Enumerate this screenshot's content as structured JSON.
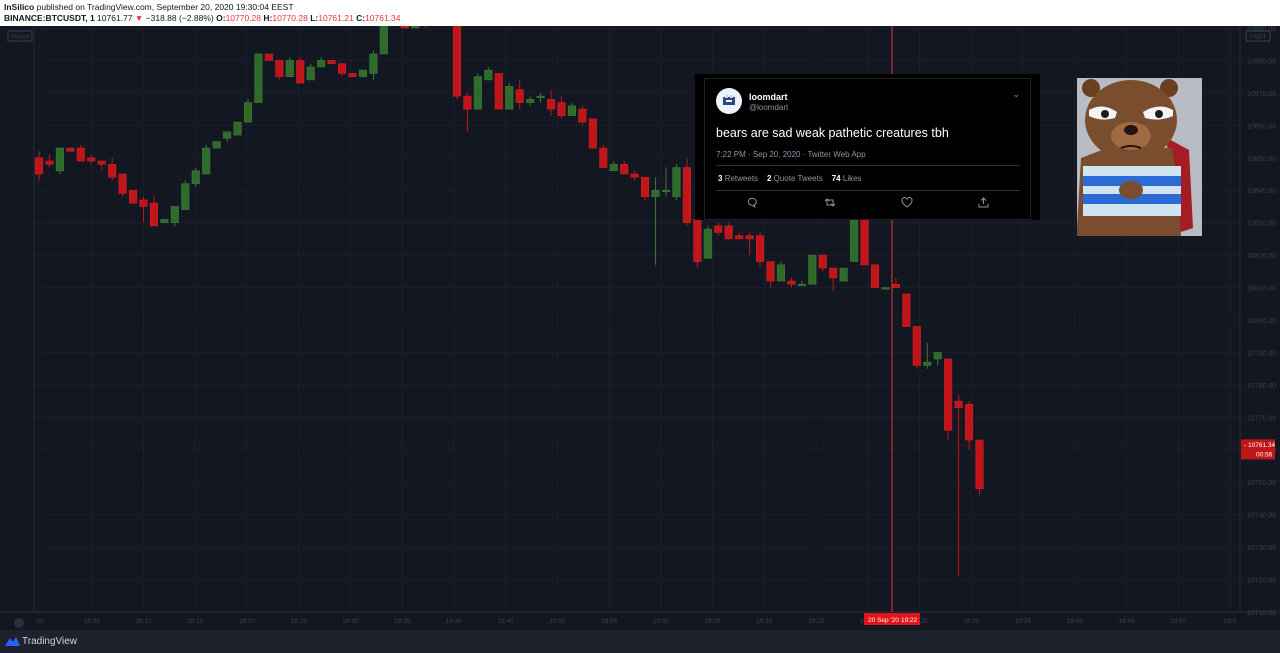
{
  "header": {
    "author": "InSilico",
    "published": "published on TradingView.com, September 20, 2020 19:30:04 EEST",
    "symbol": "BINANCE:BTCUSDT, 1",
    "last": "10761.77",
    "change": "−318.88 (−2.88%)",
    "o_label": "O:",
    "o_value": "10770.28",
    "h_label": "H:",
    "h_value": "10770.28",
    "l_label": "L:",
    "l_value": "10761.21",
    "c_label": "C:",
    "c_value": "10761.34"
  },
  "colors": {
    "up": "#2f6b2a",
    "down": "#c0161a",
    "background": "#131722",
    "grid": "#1b1f2a",
    "crosshair": "#e0393e"
  },
  "chart_data": {
    "type": "candlestick",
    "symbol": "BTCUSDT",
    "interval_minutes": 1,
    "unit_label": "USDT",
    "y_right_range": [
      10710,
      10890
    ],
    "y_right_ticks": [
      10890,
      10880,
      10870,
      10860,
      10850,
      10840,
      10830,
      10820,
      10810,
      10800,
      10790,
      10780,
      10770,
      10760,
      10750,
      10740,
      10730,
      10720,
      10710
    ],
    "x_ticks": [
      "00",
      "18:05",
      "18:10",
      "18:15",
      "18:20",
      "18:25",
      "18:30",
      "18:35",
      "18:40",
      "18:45",
      "18:50",
      "18:55",
      "19:00",
      "19:05",
      "19:10",
      "19:15",
      "19:20",
      "19:25",
      "19:30",
      "19:35",
      "19:40",
      "19:45",
      "19:50",
      "19:5"
    ],
    "last_price": "10761.34",
    "countdown": "00:56",
    "crosshair_date": "20 Sep '20",
    "crosshair_time": "19:22",
    "left_scale_tag": "Moved",
    "candles": [
      {
        "o": 10850,
        "h": 10852,
        "l": 10843,
        "c": 10845
      },
      {
        "o": 10849,
        "h": 10851,
        "l": 10847,
        "c": 10848
      },
      {
        "o": 10846,
        "h": 10853,
        "l": 10845,
        "c": 10853
      },
      {
        "o": 10853,
        "h": 10853,
        "l": 10852,
        "c": 10852
      },
      {
        "o": 10853,
        "h": 10854,
        "l": 10850,
        "c": 10849
      },
      {
        "o": 10850,
        "h": 10851,
        "l": 10848,
        "c": 10849
      },
      {
        "o": 10849,
        "h": 10849,
        "l": 10846,
        "c": 10848
      },
      {
        "o": 10848,
        "h": 10850,
        "l": 10843,
        "c": 10844
      },
      {
        "o": 10845,
        "h": 10845,
        "l": 10838,
        "c": 10839
      },
      {
        "o": 10840,
        "h": 10840,
        "l": 10836,
        "c": 10836
      },
      {
        "o": 10837,
        "h": 10838,
        "l": 10830,
        "c": 10835
      },
      {
        "o": 10836,
        "h": 10838,
        "l": 10829,
        "c": 10829
      },
      {
        "o": 10830,
        "h": 10831,
        "l": 10830,
        "c": 10831
      },
      {
        "o": 10830,
        "h": 10835,
        "l": 10829,
        "c": 10835
      },
      {
        "o": 10834,
        "h": 10843,
        "l": 10834,
        "c": 10842
      },
      {
        "o": 10842,
        "h": 10847,
        "l": 10841,
        "c": 10846
      },
      {
        "o": 10845,
        "h": 10854,
        "l": 10845,
        "c": 10853
      },
      {
        "o": 10853,
        "h": 10855,
        "l": 10853,
        "c": 10855
      },
      {
        "o": 10856,
        "h": 10858,
        "l": 10855,
        "c": 10858
      },
      {
        "o": 10857,
        "h": 10861,
        "l": 10857,
        "c": 10861
      },
      {
        "o": 10861,
        "h": 10868,
        "l": 10861,
        "c": 10867
      },
      {
        "o": 10867,
        "h": 10882,
        "l": 10867,
        "c": 10882
      },
      {
        "o": 10882,
        "h": 10882,
        "l": 10880,
        "c": 10880
      },
      {
        "o": 10880,
        "h": 10880,
        "l": 10874,
        "c": 10875
      },
      {
        "o": 10875,
        "h": 10881,
        "l": 10875,
        "c": 10880
      },
      {
        "o": 10880,
        "h": 10881,
        "l": 10873,
        "c": 10873
      },
      {
        "o": 10874,
        "h": 10879,
        "l": 10874,
        "c": 10878
      },
      {
        "o": 10878,
        "h": 10881,
        "l": 10878,
        "c": 10880
      },
      {
        "o": 10880,
        "h": 10880,
        "l": 10879,
        "c": 10879
      },
      {
        "o": 10879,
        "h": 10879,
        "l": 10875,
        "c": 10876
      },
      {
        "o": 10876,
        "h": 10876,
        "l": 10875,
        "c": 10875
      },
      {
        "o": 10875,
        "h": 10877,
        "l": 10875,
        "c": 10877
      },
      {
        "o": 10876,
        "h": 10883,
        "l": 10874,
        "c": 10882
      },
      {
        "o": 10882,
        "h": 10891,
        "l": 10882,
        "c": 10891
      },
      {
        "o": 10893,
        "h": 10895,
        "l": 10893,
        "c": 10894
      },
      {
        "o": 10894,
        "h": 10894,
        "l": 10890,
        "c": 10890
      },
      {
        "o": 10890,
        "h": 10895,
        "l": 10890,
        "c": 10894
      },
      {
        "o": 10892,
        "h": 10893,
        "l": 10890,
        "c": 10891
      },
      {
        "o": 10891,
        "h": 10894,
        "l": 10891,
        "c": 10893
      },
      {
        "o": 10893,
        "h": 10894,
        "l": 10892,
        "c": 10893
      },
      {
        "o": 10895,
        "h": 10896,
        "l": 10868,
        "c": 10869
      },
      {
        "o": 10869,
        "h": 10870,
        "l": 10858,
        "c": 10865
      },
      {
        "o": 10865,
        "h": 10876,
        "l": 10865,
        "c": 10875
      },
      {
        "o": 10874,
        "h": 10878,
        "l": 10874,
        "c": 10877
      },
      {
        "o": 10876,
        "h": 10876,
        "l": 10865,
        "c": 10865
      },
      {
        "o": 10865,
        "h": 10873,
        "l": 10865,
        "c": 10872
      },
      {
        "o": 10871,
        "h": 10874,
        "l": 10865,
        "c": 10867
      },
      {
        "o": 10867,
        "h": 10869,
        "l": 10866,
        "c": 10868
      },
      {
        "o": 10869,
        "h": 10870,
        "l": 10867,
        "c": 10869
      },
      {
        "o": 10868,
        "h": 10871,
        "l": 10863,
        "c": 10865
      },
      {
        "o": 10867,
        "h": 10869,
        "l": 10862,
        "c": 10863
      },
      {
        "o": 10863,
        "h": 10867,
        "l": 10863,
        "c": 10866
      },
      {
        "o": 10865,
        "h": 10866,
        "l": 10860,
        "c": 10861
      },
      {
        "o": 10862,
        "h": 10862,
        "l": 10853,
        "c": 10853
      },
      {
        "o": 10853,
        "h": 10854,
        "l": 10847,
        "c": 10847
      },
      {
        "o": 10846,
        "h": 10849,
        "l": 10846,
        "c": 10848
      },
      {
        "o": 10848,
        "h": 10849,
        "l": 10845,
        "c": 10845
      },
      {
        "o": 10845,
        "h": 10846,
        "l": 10843,
        "c": 10844
      },
      {
        "o": 10844,
        "h": 10844,
        "l": 10837,
        "c": 10838
      },
      {
        "o": 10838,
        "h": 10844,
        "l": 10817,
        "c": 10840
      },
      {
        "o": 10840,
        "h": 10847,
        "l": 10838,
        "c": 10840
      },
      {
        "o": 10838,
        "h": 10848,
        "l": 10837,
        "c": 10847
      },
      {
        "o": 10847,
        "h": 10850,
        "l": 10829,
        "c": 10830
      },
      {
        "o": 10831,
        "h": 10831,
        "l": 10816,
        "c": 10818
      },
      {
        "o": 10819,
        "h": 10829,
        "l": 10819,
        "c": 10828
      },
      {
        "o": 10829,
        "h": 10830,
        "l": 10826,
        "c": 10827
      },
      {
        "o": 10829,
        "h": 10830,
        "l": 10826,
        "c": 10825
      },
      {
        "o": 10826,
        "h": 10827,
        "l": 10825,
        "c": 10825
      },
      {
        "o": 10826,
        "h": 10827,
        "l": 10820,
        "c": 10825
      },
      {
        "o": 10826,
        "h": 10827,
        "l": 10816,
        "c": 10818
      },
      {
        "o": 10818,
        "h": 10818,
        "l": 10810,
        "c": 10812
      },
      {
        "o": 10812,
        "h": 10818,
        "l": 10812,
        "c": 10817
      },
      {
        "o": 10812,
        "h": 10813,
        "l": 10810,
        "c": 10811
      },
      {
        "o": 10811,
        "h": 10812,
        "l": 10811,
        "c": 10811
      },
      {
        "o": 10811,
        "h": 10820,
        "l": 10811,
        "c": 10820
      },
      {
        "o": 10820,
        "h": 10820,
        "l": 10815,
        "c": 10816
      },
      {
        "o": 10816,
        "h": 10816,
        "l": 10809,
        "c": 10813
      },
      {
        "o": 10812,
        "h": 10816,
        "l": 10812,
        "c": 10816
      },
      {
        "o": 10818,
        "h": 10832,
        "l": 10818,
        "c": 10831
      },
      {
        "o": 10831,
        "h": 10831,
        "l": 10817,
        "c": 10817
      },
      {
        "o": 10817,
        "h": 10817,
        "l": 10810,
        "c": 10810
      },
      {
        "o": 10810,
        "h": 10810,
        "l": 10810,
        "c": 10810
      },
      {
        "o": 10811,
        "h": 10813,
        "l": 10810,
        "c": 10810
      },
      {
        "o": 10808,
        "h": 10808,
        "l": 10798,
        "c": 10798
      },
      {
        "o": 10798,
        "h": 10798,
        "l": 10785,
        "c": 10786
      },
      {
        "o": 10786,
        "h": 10793,
        "l": 10785,
        "c": 10787
      },
      {
        "o": 10788,
        "h": 10790,
        "l": 10786,
        "c": 10790
      },
      {
        "o": 10788,
        "h": 10788,
        "l": 10763,
        "c": 10766
      },
      {
        "o": 10775,
        "h": 10777,
        "l": 10721,
        "c": 10773
      },
      {
        "o": 10774,
        "h": 10775,
        "l": 10760,
        "c": 10763
      },
      {
        "o": 10763,
        "h": 10763,
        "l": 10746,
        "c": 10748
      }
    ]
  },
  "tweet": {
    "name": "loomdart",
    "handle": "@loomdart",
    "text": "bears are sad weak pathetic creatures tbh",
    "meta": "7:22 PM · Sep 20, 2020 · Twitter Web App",
    "retweets": "3",
    "retweets_label": "Retweets",
    "quote_tweets": "2",
    "quote_tweets_label": "Quote Tweets",
    "likes": "74",
    "likes_label": "Likes",
    "menu_icon": "chevron-down-icon",
    "action_icons": [
      "reply-icon",
      "retweet-icon",
      "like-icon",
      "share-icon"
    ]
  },
  "bear_image": {
    "icon": "crying-bear-meme"
  },
  "footer": {
    "brand": "TradingView",
    "icon": "tradingview-logo-icon"
  }
}
